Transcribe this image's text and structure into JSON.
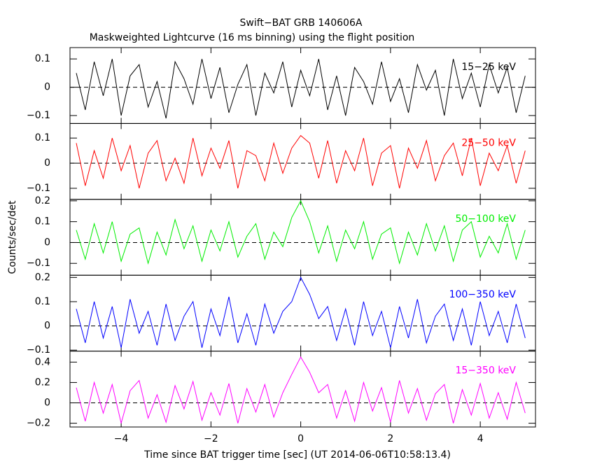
{
  "chart_data": [
    {
      "type": "line",
      "title": "Swift−BAT GRB 140606A",
      "subtitle": "Maskweighted Lightcurve (16 ms binning) using the flight position",
      "x": [
        -5.0,
        -4.8,
        -4.6,
        -4.4,
        -4.2,
        -4.0,
        -3.8,
        -3.6,
        -3.4,
        -3.2,
        -3.0,
        -2.8,
        -2.6,
        -2.4,
        -2.2,
        -2.0,
        -1.8,
        -1.6,
        -1.4,
        -1.2,
        -1.0,
        -0.8,
        -0.6,
        -0.4,
        -0.2,
        0.0,
        0.2,
        0.4,
        0.6,
        0.8,
        1.0,
        1.2,
        1.4,
        1.6,
        1.8,
        2.0,
        2.2,
        2.4,
        2.6,
        2.8,
        3.0,
        3.2,
        3.4,
        3.6,
        3.8,
        4.0,
        4.2,
        4.4,
        4.6,
        4.8,
        5.0
      ],
      "series": [
        {
          "name": "15−25 keV",
          "color": "#000000",
          "values": [
            0.05,
            -0.08,
            0.09,
            -0.03,
            0.1,
            -0.1,
            0.04,
            0.08,
            -0.07,
            0.02,
            -0.11,
            0.09,
            0.03,
            -0.06,
            0.1,
            -0.04,
            0.07,
            -0.09,
            0.01,
            0.08,
            -0.1,
            0.05,
            -0.02,
            0.09,
            -0.07,
            0.06,
            -0.03,
            0.1,
            -0.08,
            0.04,
            -0.1,
            0.07,
            0.02,
            -0.06,
            0.09,
            -0.05,
            0.03,
            -0.09,
            0.08,
            -0.01,
            0.06,
            -0.1,
            0.1,
            -0.04,
            0.05,
            -0.07,
            0.08,
            -0.02,
            0.07,
            -0.09,
            0.04
          ]
        }
      ],
      "xlim": [
        -5.14,
        5.23
      ],
      "ylim": [
        -0.128,
        0.14
      ],
      "yticks": [
        0.1,
        0,
        {
          "value": -0.1,
          "label": "−0.1"
        }
      ]
    },
    {
      "type": "line",
      "x": [
        -5.0,
        -4.8,
        -4.6,
        -4.4,
        -4.2,
        -4.0,
        -3.8,
        -3.6,
        -3.4,
        -3.2,
        -3.0,
        -2.8,
        -2.6,
        -2.4,
        -2.2,
        -2.0,
        -1.8,
        -1.6,
        -1.4,
        -1.2,
        -1.0,
        -0.8,
        -0.6,
        -0.4,
        -0.2,
        0.0,
        0.2,
        0.4,
        0.6,
        0.8,
        1.0,
        1.2,
        1.4,
        1.6,
        1.8,
        2.0,
        2.2,
        2.4,
        2.6,
        2.8,
        3.0,
        3.2,
        3.4,
        3.6,
        3.8,
        4.0,
        4.2,
        4.4,
        4.6,
        4.8,
        5.0
      ],
      "series": [
        {
          "name": "25−50 keV",
          "color": "#ff0000",
          "values": [
            0.08,
            -0.09,
            0.05,
            -0.06,
            0.1,
            -0.03,
            0.07,
            -0.1,
            0.04,
            0.09,
            -0.07,
            0.02,
            -0.08,
            0.1,
            -0.05,
            0.06,
            -0.02,
            0.09,
            -0.1,
            0.05,
            0.03,
            -0.07,
            0.08,
            -0.04,
            0.06,
            0.11,
            0.08,
            -0.06,
            0.09,
            -0.08,
            0.05,
            -0.03,
            0.1,
            -0.09,
            0.04,
            0.07,
            -0.1,
            0.06,
            -0.02,
            0.09,
            -0.07,
            0.03,
            0.08,
            -0.05,
            0.1,
            -0.09,
            0.04,
            -0.03,
            0.07,
            -0.08,
            0.05
          ]
        }
      ],
      "xlim": [
        -5.14,
        5.23
      ],
      "ylim": [
        -0.144,
        0.158
      ],
      "yticks": [
        0.1,
        0,
        {
          "value": -0.1,
          "label": "−0.1"
        }
      ]
    },
    {
      "type": "line",
      "y_label": "Counts/sec/det",
      "x": [
        -5.0,
        -4.8,
        -4.6,
        -4.4,
        -4.2,
        -4.0,
        -3.8,
        -3.6,
        -3.4,
        -3.2,
        -3.0,
        -2.8,
        -2.6,
        -2.4,
        -2.2,
        -2.0,
        -1.8,
        -1.6,
        -1.4,
        -1.2,
        -1.0,
        -0.8,
        -0.6,
        -0.4,
        -0.2,
        0.0,
        0.2,
        0.4,
        0.6,
        0.8,
        1.0,
        1.2,
        1.4,
        1.6,
        1.8,
        2.0,
        2.2,
        2.4,
        2.6,
        2.8,
        3.0,
        3.2,
        3.4,
        3.6,
        3.8,
        4.0,
        4.2,
        4.4,
        4.6,
        4.8,
        5.0
      ],
      "series": [
        {
          "name": "50−100 keV",
          "color": "#00ee00",
          "values": [
            0.06,
            -0.08,
            0.09,
            -0.05,
            0.1,
            -0.09,
            0.04,
            0.07,
            -0.1,
            0.05,
            -0.06,
            0.11,
            -0.03,
            0.08,
            -0.09,
            0.06,
            -0.04,
            0.1,
            -0.07,
            0.03,
            0.09,
            -0.08,
            0.05,
            -0.02,
            0.12,
            0.2,
            0.1,
            -0.05,
            0.08,
            -0.09,
            0.06,
            -0.03,
            0.1,
            -0.08,
            0.04,
            0.07,
            -0.1,
            0.05,
            -0.06,
            0.09,
            -0.04,
            0.08,
            -0.09,
            0.06,
            0.1,
            -0.07,
            0.03,
            -0.05,
            0.09,
            -0.08,
            0.06
          ]
        }
      ],
      "xlim": [
        -5.14,
        5.23
      ],
      "ylim": [
        -0.157,
        0.207
      ],
      "yticks": [
        0.2,
        0.1,
        0,
        {
          "value": -0.1,
          "label": "−0.1"
        }
      ]
    },
    {
      "type": "line",
      "x": [
        -5.0,
        -4.8,
        -4.6,
        -4.4,
        -4.2,
        -4.0,
        -3.8,
        -3.6,
        -3.4,
        -3.2,
        -3.0,
        -2.8,
        -2.6,
        -2.4,
        -2.2,
        -2.0,
        -1.8,
        -1.6,
        -1.4,
        -1.2,
        -1.0,
        -0.8,
        -0.6,
        -0.4,
        -0.2,
        0.0,
        0.2,
        0.4,
        0.6,
        0.8,
        1.0,
        1.2,
        1.4,
        1.6,
        1.8,
        2.0,
        2.2,
        2.4,
        2.6,
        2.8,
        3.0,
        3.2,
        3.4,
        3.6,
        3.8,
        4.0,
        4.2,
        4.4,
        4.6,
        4.8,
        5.0
      ],
      "series": [
        {
          "name": "100−350 keV",
          "color": "#0000ff",
          "values": [
            0.07,
            -0.07,
            0.1,
            -0.05,
            0.08,
            -0.09,
            0.11,
            -0.03,
            0.06,
            -0.08,
            0.09,
            -0.06,
            0.04,
            0.1,
            -0.09,
            0.07,
            -0.04,
            0.12,
            -0.07,
            0.05,
            -0.08,
            0.09,
            -0.03,
            0.06,
            0.1,
            0.2,
            0.13,
            0.03,
            0.08,
            -0.06,
            0.07,
            -0.08,
            0.1,
            -0.04,
            0.06,
            -0.09,
            0.08,
            -0.05,
            0.11,
            -0.07,
            0.04,
            0.09,
            -0.06,
            0.07,
            -0.08,
            0.1,
            -0.04,
            0.06,
            -0.07,
            0.09,
            -0.05
          ]
        }
      ],
      "xlim": [
        -5.14,
        5.23
      ],
      "ylim": [
        -0.104,
        0.209
      ],
      "yticks": [
        0.2,
        0.1,
        0,
        {
          "value": -0.1,
          "label": "−0.1"
        }
      ]
    },
    {
      "type": "line",
      "x_label": "Time since BAT trigger time [sec] (UT 2014-06-06T10:58:13.4)",
      "x": [
        -5.0,
        -4.8,
        -4.6,
        -4.4,
        -4.2,
        -4.0,
        -3.8,
        -3.6,
        -3.4,
        -3.2,
        -3.0,
        -2.8,
        -2.6,
        -2.4,
        -2.2,
        -2.0,
        -1.8,
        -1.6,
        -1.4,
        -1.2,
        -1.0,
        -0.8,
        -0.6,
        -0.4,
        -0.2,
        0.0,
        0.2,
        0.4,
        0.6,
        0.8,
        1.0,
        1.2,
        1.4,
        1.6,
        1.8,
        2.0,
        2.2,
        2.4,
        2.6,
        2.8,
        3.0,
        3.2,
        3.4,
        3.6,
        3.8,
        4.0,
        4.2,
        4.4,
        4.6,
        4.8,
        5.0
      ],
      "series": [
        {
          "name": "15−350 keV",
          "color": "#ff00ff",
          "values": [
            0.15,
            -0.18,
            0.2,
            -0.1,
            0.18,
            -0.2,
            0.12,
            0.22,
            -0.15,
            0.08,
            -0.19,
            0.17,
            -0.06,
            0.21,
            -0.17,
            0.1,
            -0.12,
            0.19,
            -0.2,
            0.14,
            -0.09,
            0.18,
            -0.14,
            0.1,
            0.28,
            0.45,
            0.3,
            0.1,
            0.18,
            -0.15,
            0.12,
            -0.18,
            0.2,
            -0.08,
            0.15,
            -0.19,
            0.22,
            -0.1,
            0.14,
            -0.17,
            0.09,
            0.18,
            -0.2,
            0.13,
            -0.12,
            0.19,
            -0.15,
            0.1,
            -0.16,
            0.2,
            -0.1
          ]
        }
      ],
      "xlim": [
        -5.14,
        5.23
      ],
      "ylim": [
        -0.237,
        0.508
      ],
      "yticks": [
        0.4,
        0.2,
        0,
        {
          "value": -0.2,
          "label": "−0.2"
        }
      ],
      "xticks": [
        {
          "value": -4,
          "label": "−4"
        },
        {
          "value": -2,
          "label": "−2"
        },
        0,
        2,
        4
      ]
    }
  ]
}
